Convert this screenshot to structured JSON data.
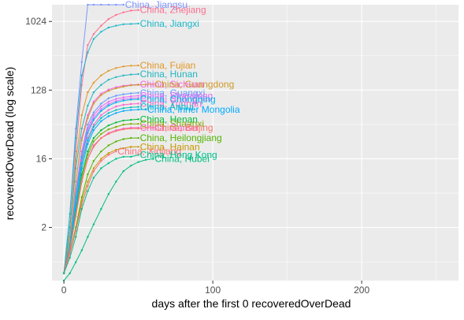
{
  "chart_data": {
    "type": "line",
    "title": "",
    "xlabel": "days after the first 0 recoveredOverDead",
    "ylabel": "recoveredOverDead  (log scale)",
    "y_scale": "log2",
    "xlim": [
      -8,
      265
    ],
    "ylim": [
      0.4,
      1700
    ],
    "x_ticks": [
      0,
      100,
      200
    ],
    "x_tick_labels": [
      "0",
      "100",
      "200"
    ],
    "y_ticks": [
      2,
      16,
      128,
      1024
    ],
    "y_tick_labels": [
      "2",
      "16",
      "128",
      "1024"
    ],
    "grid": true,
    "legend": "none (series labelled at line ends)",
    "background": "#ebebeb",
    "series": [
      {
        "name": "China, Jiangsu",
        "color": "#7f96ff",
        "x": [
          0,
          4,
          8,
          12,
          16,
          20,
          25,
          30,
          35,
          40
        ],
        "y": [
          0.5,
          3,
          40,
          300,
          1700,
          1700,
          1700,
          1700,
          1700,
          1700
        ]
      },
      {
        "name": "China, Zhejiang",
        "color": "#fc6f8f",
        "x": [
          0,
          4,
          8,
          12,
          16,
          20,
          25,
          30,
          35,
          40,
          45,
          50
        ],
        "y": [
          0.5,
          2,
          20,
          150,
          500,
          700,
          900,
          1100,
          1250,
          1350,
          1420,
          1450
        ]
      },
      {
        "name": "China, Jiangxi",
        "color": "#1bb8c8",
        "x": [
          0,
          4,
          8,
          12,
          16,
          20,
          25,
          30,
          35,
          40,
          45,
          50
        ],
        "y": [
          0.5,
          3,
          30,
          200,
          400,
          600,
          750,
          850,
          900,
          940,
          950,
          960
        ]
      },
      {
        "name": "China, Fujian",
        "color": "#e09726",
        "x": [
          0,
          4,
          8,
          12,
          16,
          20,
          25,
          30,
          35,
          40,
          45,
          50
        ],
        "y": [
          0.5,
          2,
          15,
          60,
          120,
          160,
          200,
          230,
          250,
          262,
          268,
          270
        ]
      },
      {
        "name": "China, Hunan",
        "color": "#23b5c0",
        "x": [
          0,
          4,
          8,
          12,
          16,
          20,
          25,
          30,
          35,
          40,
          45,
          50
        ],
        "y": [
          0.5,
          2,
          12,
          40,
          80,
          120,
          150,
          175,
          190,
          200,
          205,
          208
        ]
      },
      {
        "name": "China, Sichuan",
        "color": "#f564e3",
        "x": [
          0,
          4,
          8,
          12,
          16,
          20,
          25,
          30,
          35,
          40,
          45,
          50
        ],
        "y": [
          0.5,
          1.5,
          8,
          30,
          60,
          90,
          115,
          130,
          140,
          146,
          150,
          152
        ]
      },
      {
        "name": "China, Guangdong",
        "color": "#cf9a2a",
        "x": [
          0,
          4,
          8,
          12,
          16,
          20,
          25,
          30,
          35,
          40,
          45,
          50,
          55,
          60
        ],
        "y": [
          0.5,
          1.5,
          8,
          28,
          55,
          85,
          110,
          125,
          135,
          142,
          148,
          150,
          152,
          153
        ]
      },
      {
        "name": "China, Guangxi",
        "color": "#619cff",
        "x": [
          0,
          4,
          8,
          12,
          16,
          20,
          25,
          30,
          35,
          40,
          45,
          50
        ],
        "y": [
          0.5,
          1.2,
          6,
          20,
          45,
          65,
          85,
          100,
          108,
          113,
          116,
          118
        ]
      },
      {
        "name": "China, Shandong",
        "color": "#e76bf3",
        "x": [
          0,
          4,
          8,
          12,
          16,
          20,
          25,
          30,
          35,
          40,
          45,
          50
        ],
        "y": [
          0.5,
          1.2,
          6,
          20,
          40,
          60,
          78,
          90,
          98,
          103,
          106,
          108
        ]
      },
      {
        "name": "China, Shanghai",
        "color": "#d575fe",
        "x": [
          0,
          4,
          8,
          12,
          16,
          20,
          25,
          30,
          35,
          40,
          45,
          50
        ],
        "y": [
          0.5,
          1.2,
          5,
          18,
          38,
          55,
          72,
          84,
          92,
          97,
          100,
          101
        ]
      },
      {
        "name": "China, Chongqing",
        "color": "#00b6eb",
        "x": [
          0,
          4,
          8,
          12,
          16,
          20,
          25,
          30,
          35,
          40,
          45,
          50
        ],
        "y": [
          0.5,
          1.2,
          5,
          17,
          35,
          52,
          68,
          80,
          88,
          93,
          96,
          97
        ]
      },
      {
        "name": "China, Yunnan",
        "color": "#fd61d1",
        "x": [
          0,
          4,
          8,
          12,
          16,
          20,
          25,
          30,
          35,
          40,
          45,
          50
        ],
        "y": [
          0.5,
          1.1,
          4,
          15,
          30,
          45,
          60,
          70,
          78,
          82,
          84,
          85
        ]
      },
      {
        "name": "China, Anhui",
        "color": "#00bfc4",
        "x": [
          0,
          4,
          8,
          12,
          16,
          20,
          25,
          30,
          35,
          40,
          45,
          50
        ],
        "y": [
          0.5,
          1.1,
          4,
          14,
          28,
          42,
          55,
          64,
          70,
          74,
          76,
          77
        ]
      },
      {
        "name": "China, Inner Mongolia",
        "color": "#00a9ff",
        "x": [
          0,
          4,
          8,
          12,
          16,
          20,
          25,
          30,
          35,
          40,
          45,
          50,
          55
        ],
        "y": [
          0.5,
          1,
          3.5,
          12,
          25,
          38,
          50,
          58,
          64,
          68,
          70,
          71,
          71
        ]
      },
      {
        "name": "China, Henan",
        "color": "#00ba38",
        "x": [
          0,
          4,
          8,
          12,
          16,
          20,
          25,
          30,
          35,
          40,
          45,
          50
        ],
        "y": [
          0.5,
          1,
          3,
          10,
          20,
          30,
          38,
          44,
          48,
          51,
          52,
          53
        ]
      },
      {
        "name": "China, Shaanxi",
        "color": "#7cae00",
        "x": [
          0,
          4,
          8,
          12,
          16,
          20,
          25,
          30,
          35,
          40,
          45,
          50
        ],
        "y": [
          0.5,
          1,
          3,
          9,
          18,
          27,
          34,
          39,
          42,
          45,
          46,
          46
        ]
      },
      {
        "name": "China, Gansu",
        "color": "#ff61c3",
        "x": [
          0,
          4,
          8,
          12,
          16,
          20,
          25,
          30,
          35,
          40,
          45,
          50
        ],
        "y": [
          0.5,
          1,
          2.8,
          8,
          16,
          24,
          30,
          35,
          38,
          40,
          41,
          41
        ]
      },
      {
        "name": "China, Beijing",
        "color": "#f8766d",
        "x": [
          0,
          4,
          8,
          12,
          16,
          20,
          25,
          30,
          35,
          40,
          45,
          50,
          55,
          60
        ],
        "y": [
          0.5,
          1,
          2.8,
          8,
          16,
          23,
          30,
          34,
          37,
          39,
          40,
          40,
          41,
          41
        ]
      },
      {
        "name": "China, Heilongjiang",
        "color": "#53b400",
        "x": [
          0,
          4,
          8,
          12,
          16,
          20,
          25,
          30,
          35,
          40,
          45,
          50
        ],
        "y": [
          0.5,
          0.9,
          2,
          5,
          10,
          15,
          20,
          24,
          27,
          29,
          30,
          30
        ]
      },
      {
        "name": "China, Hainan",
        "color": "#c49a00",
        "x": [
          0,
          4,
          8,
          12,
          16,
          20,
          25,
          30,
          35,
          40,
          45,
          50
        ],
        "y": [
          0.5,
          0.9,
          1.8,
          4.5,
          8,
          12,
          16,
          19,
          21,
          22,
          23,
          23
        ]
      },
      {
        "name": "China, Xinjiang",
        "color": "#fc717f",
        "x": [
          0,
          4,
          8,
          12,
          16,
          20,
          25,
          30,
          35
        ],
        "y": [
          0.5,
          0.9,
          1.8,
          4,
          7,
          11,
          15,
          18,
          20
        ]
      },
      {
        "name": "China, Hong Kong",
        "color": "#00c08b",
        "x": [
          0,
          4,
          8,
          12,
          16,
          20,
          25,
          30,
          35,
          40,
          45,
          50
        ],
        "y": [
          0.5,
          0.8,
          1.5,
          3.5,
          6,
          9,
          12,
          14,
          16,
          17,
          17,
          18
        ]
      },
      {
        "name": "China, Hubei",
        "color": "#00bf7d",
        "x": [
          0,
          4,
          8,
          12,
          16,
          20,
          25,
          30,
          35,
          40,
          45,
          50,
          55,
          60
        ],
        "y": [
          0.4,
          0.5,
          0.7,
          1,
          1.5,
          2.2,
          3.5,
          5.5,
          8,
          11,
          13,
          14.5,
          15.5,
          16
        ]
      }
    ]
  }
}
